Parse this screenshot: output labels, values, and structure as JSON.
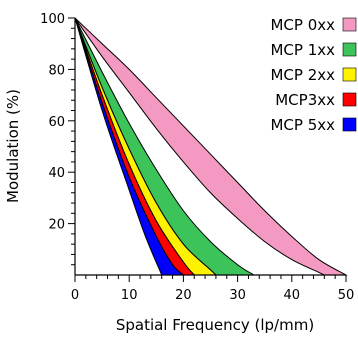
{
  "chart_data": {
    "type": "area",
    "title": "",
    "xlabel": "Spatial Frequency (lp/mm)",
    "ylabel": "Modulation (%)",
    "xlim": [
      0,
      50
    ],
    "ylim": [
      0,
      100
    ],
    "x_ticks": [
      "0",
      "10",
      "20",
      "30",
      "40",
      "50"
    ],
    "y_ticks": [
      "20",
      "40",
      "60",
      "80",
      "100"
    ],
    "grid": false,
    "legend_position": "top-right",
    "series": [
      {
        "name": "MCP 0xx",
        "color": "#f49ac2",
        "upper": [
          [
            0,
            100
          ],
          [
            5,
            90
          ],
          [
            10,
            80
          ],
          [
            15,
            69
          ],
          [
            20,
            58
          ],
          [
            25,
            47
          ],
          [
            30,
            36
          ],
          [
            35,
            25
          ],
          [
            40,
            15
          ],
          [
            45,
            6
          ],
          [
            50,
            0
          ]
        ],
        "lower": [
          [
            0,
            100
          ],
          [
            5,
            85
          ],
          [
            10,
            71
          ],
          [
            15,
            57
          ],
          [
            20,
            44
          ],
          [
            25,
            32
          ],
          [
            30,
            22
          ],
          [
            35,
            13
          ],
          [
            40,
            6
          ],
          [
            45,
            1
          ],
          [
            46,
            0
          ]
        ]
      },
      {
        "name": "MCP 1xx",
        "color": "#3cc45a",
        "upper": [
          [
            0,
            100
          ],
          [
            5,
            79
          ],
          [
            10,
            59
          ],
          [
            15,
            41
          ],
          [
            20,
            25
          ],
          [
            25,
            13
          ],
          [
            30,
            4
          ],
          [
            33,
            0
          ]
        ],
        "lower": [
          [
            0,
            100
          ],
          [
            5,
            73
          ],
          [
            10,
            49
          ],
          [
            15,
            28
          ],
          [
            20,
            12
          ],
          [
            25,
            2
          ],
          [
            26,
            0
          ]
        ]
      },
      {
        "name": "MCP 2xx",
        "color": "#fff200",
        "upper": [
          [
            0,
            100
          ],
          [
            5,
            73
          ],
          [
            10,
            49
          ],
          [
            15,
            28
          ],
          [
            20,
            12
          ],
          [
            25,
            2
          ],
          [
            26,
            0
          ]
        ],
        "lower": [
          [
            0,
            100
          ],
          [
            5,
            70
          ],
          [
            10,
            43
          ],
          [
            15,
            21
          ],
          [
            20,
            5
          ],
          [
            22,
            0
          ]
        ]
      },
      {
        "name": "MCP3xx",
        "color": "#ff0000",
        "upper": [
          [
            0,
            100
          ],
          [
            5,
            70
          ],
          [
            10,
            43
          ],
          [
            15,
            21
          ],
          [
            20,
            5
          ],
          [
            22,
            0
          ]
        ],
        "lower": [
          [
            0,
            100
          ],
          [
            5,
            67
          ],
          [
            10,
            38
          ],
          [
            15,
            15
          ],
          [
            18,
            4
          ],
          [
            20,
            0
          ]
        ]
      },
      {
        "name": "MCP 5xx",
        "color": "#0000ff",
        "upper": [
          [
            0,
            100
          ],
          [
            5,
            67
          ],
          [
            10,
            38
          ],
          [
            15,
            15
          ],
          [
            18,
            4
          ],
          [
            20,
            0
          ]
        ],
        "lower": [
          [
            0,
            100
          ],
          [
            5,
            64
          ],
          [
            10,
            33
          ],
          [
            13,
            15
          ],
          [
            16,
            0
          ]
        ]
      }
    ]
  }
}
